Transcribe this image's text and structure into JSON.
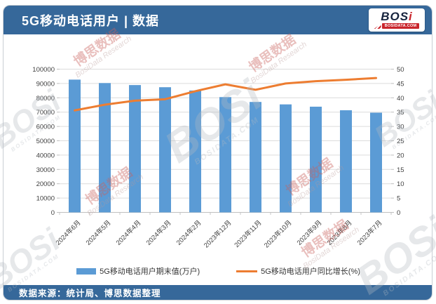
{
  "header": {
    "title": "5G移动电话用户 | 数据"
  },
  "logo": {
    "text_main": "BOS",
    "text_i": "i",
    "domain": "BOSIDATA.COM"
  },
  "footer": {
    "source": "数据来源：统计局、博思数据整理"
  },
  "watermark": {
    "cn": "博思数据",
    "en": "BosiData Research",
    "logo": "BOSi",
    "domain": "BOSIDATA.COM"
  },
  "colors": {
    "header_bg": "#36689A",
    "bar": "#5B9BD5",
    "line": "#ED7D31",
    "grid": "#DCDCDC",
    "axis_text": "#3F3F3F",
    "logo_red": "#C9252C",
    "logo_navy": "#16233D"
  },
  "chart_data": {
    "type": "bar",
    "title": "5G移动电话用户 | 数据",
    "categories": [
      "2024年6月",
      "2024年5月",
      "2024年4月",
      "2024年3月",
      "2024年2月",
      "2023年12月",
      "2023年11月",
      "2023年10月",
      "2023年9月",
      "2023年8月",
      "2023年7月"
    ],
    "series": [
      {
        "name": "5G移动电话用户期末值(万户)",
        "type": "bar",
        "axis": "left",
        "color": "#5B9BD5",
        "values": [
          92700,
          90300,
          88900,
          87400,
          85100,
          80500,
          77100,
          75400,
          73800,
          71300,
          69600
        ]
      },
      {
        "name": "5G移动电话用户同比增长(%)",
        "type": "line",
        "axis": "right",
        "color": "#ED7D31",
        "values": [
          35.6,
          37.6,
          39.0,
          39.5,
          42.3,
          44.7,
          42.8,
          45.0,
          45.8,
          46.3,
          46.9
        ]
      }
    ],
    "left_axis": {
      "min": 0,
      "max": 100000,
      "step": 10000
    },
    "right_axis": {
      "min": 0,
      "max": 50,
      "step": 5
    },
    "grid": true,
    "legend_position": "bottom",
    "x_label_rotation": -45
  }
}
